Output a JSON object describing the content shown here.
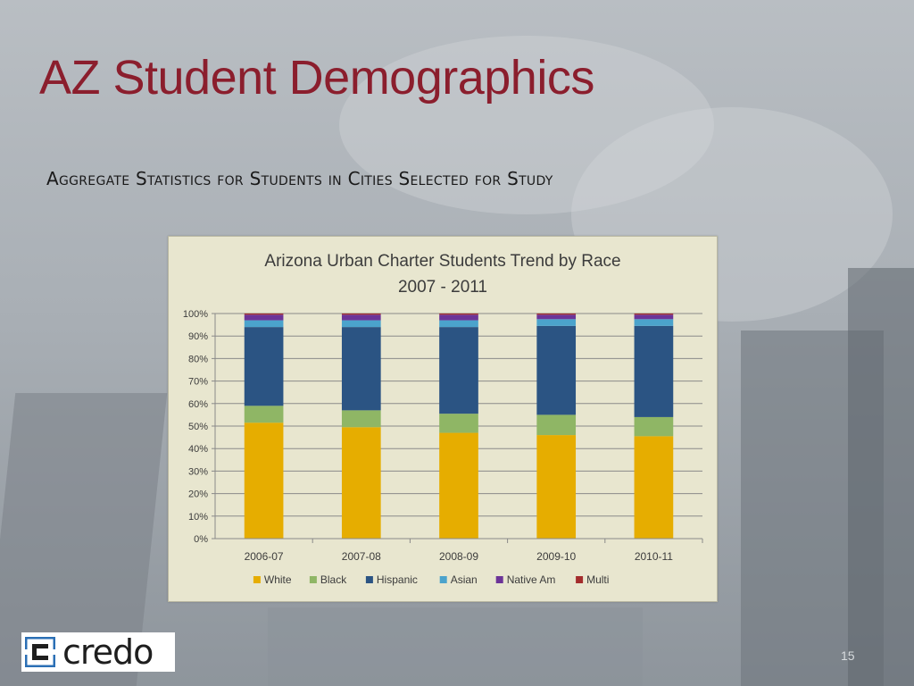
{
  "slide": {
    "title": "AZ Student Demographics",
    "subtitle": "Aggregate Statistics for Students in Cities Selected for Study",
    "page_number": "15",
    "logo_text": "credo"
  },
  "chart_data": {
    "type": "bar",
    "stacked": true,
    "percent": true,
    "title": "Arizona Urban Charter Students Trend by Race",
    "subtitle": "2007 - 2011",
    "categories": [
      "2006-07",
      "2007-08",
      "2008-09",
      "2009-10",
      "2010-11"
    ],
    "ylim": [
      0,
      100
    ],
    "yticks": [
      "0%",
      "10%",
      "20%",
      "30%",
      "40%",
      "50%",
      "60%",
      "70%",
      "80%",
      "90%",
      "100%"
    ],
    "grid": true,
    "legend_position": "bottom",
    "series": [
      {
        "name": "White",
        "color": "#e6ad00",
        "values": [
          51.5,
          49.5,
          47,
          46,
          45.5
        ]
      },
      {
        "name": "Black",
        "color": "#8fb665",
        "values": [
          7.5,
          7.5,
          8.5,
          9,
          8.5
        ]
      },
      {
        "name": "Hispanic",
        "color": "#2b5483",
        "values": [
          35,
          37,
          38.5,
          39.5,
          40.5
        ]
      },
      {
        "name": "Asian",
        "color": "#4ba3cc",
        "values": [
          3,
          3,
          3,
          3,
          3
        ]
      },
      {
        "name": "Native Am",
        "color": "#6c3498",
        "values": [
          2.5,
          2.5,
          2.5,
          2,
          2
        ]
      },
      {
        "name": "Multi",
        "color": "#a32c2c",
        "values": [
          0.5,
          0.5,
          0.5,
          0.5,
          0.5
        ]
      }
    ]
  }
}
